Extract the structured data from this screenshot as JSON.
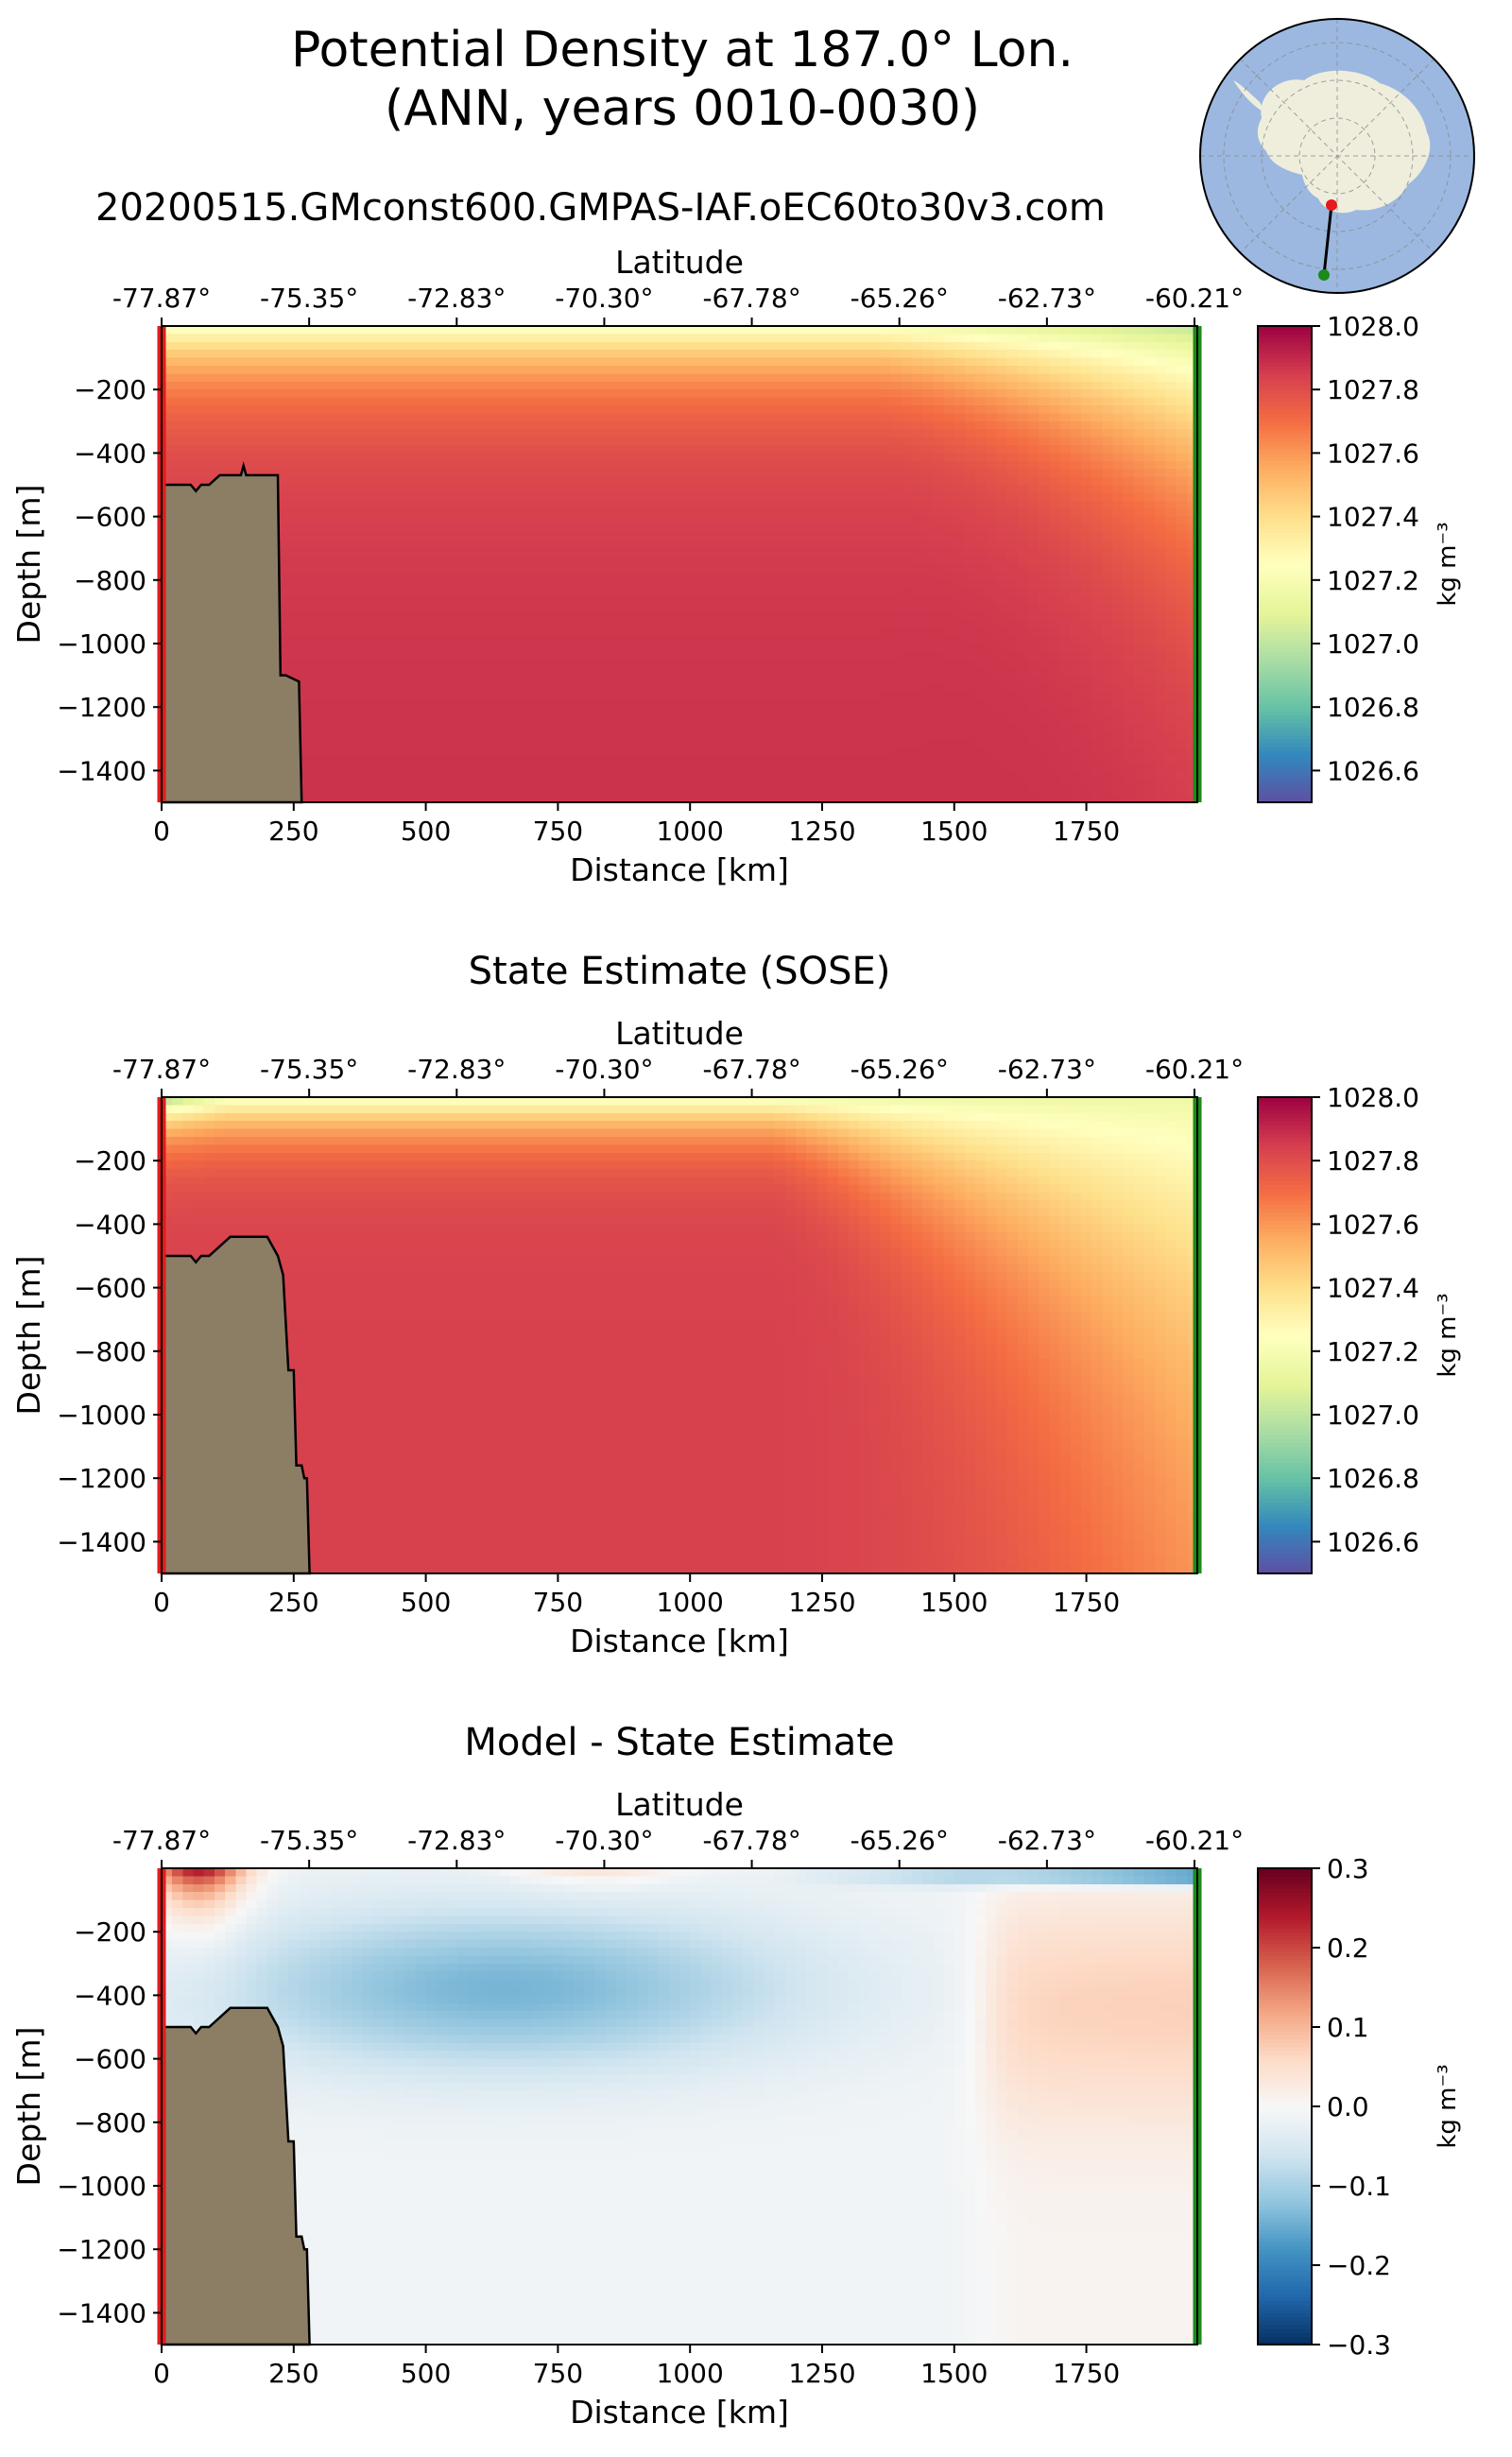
{
  "figure": {
    "title_line1": "Potential Density at 187.0° Lon.",
    "title_line2": "(ANN, years 0010-0030)",
    "run_title": "20200515.GMconst600.GMPAS-IAF.oEC60to30v3.com",
    "inset_map": "south-polar-stereographic-locator-map",
    "transect_start_marker_color": "#e41a1c",
    "transect_end_marker_color": "#1a8a1a",
    "land_color": "#8c7e65",
    "ocean_color": "#9cb8e0",
    "antarctica_color": "#efeedd"
  },
  "chart_data": [
    {
      "type": "heatmap",
      "title": "",
      "xlabel": "Distance [km]",
      "ylabel": "Depth [m]",
      "x2label": "Latitude",
      "xlim": [
        0,
        1960
      ],
      "ylim": [
        -1500,
        0
      ],
      "xticks": [
        0,
        250,
        500,
        750,
        1000,
        1250,
        1500,
        1750
      ],
      "yticks": [
        -200,
        -400,
        -600,
        -800,
        -1000,
        -1200,
        -1400
      ],
      "x2tick_labels": [
        "-77.87°",
        "-75.35°",
        "-72.83°",
        "-70.30°",
        "-67.78°",
        "-65.26°",
        "-62.73°",
        "-60.21°"
      ],
      "colormap": "Spectral_r",
      "vmin": 1026.5,
      "vmax": 1028.0,
      "colorbar_ticks": [
        "1026.6",
        "1026.8",
        "1027.0",
        "1027.2",
        "1027.4",
        "1027.6",
        "1027.8",
        "1028.0"
      ],
      "colorbar_label": "kg m⁻³",
      "field": {
        "surface": 1027.25,
        "deep": 1027.82,
        "east_surface": 1026.95,
        "east_deep": 1027.8
      },
      "bathymetry": {
        "distance_km": [
          0,
          20,
          40,
          55,
          65,
          75,
          90,
          110,
          150,
          155,
          160,
          200,
          220,
          225,
          235,
          260,
          265
        ],
        "depth_m": [
          -500,
          -500,
          -500,
          -500,
          -520,
          -500,
          -500,
          -470,
          -470,
          -440,
          -470,
          -470,
          -470,
          -1100,
          -1100,
          -1120,
          -1500
        ]
      }
    },
    {
      "type": "heatmap",
      "title": "State Estimate (SOSE)",
      "xlabel": "Distance [km]",
      "ylabel": "Depth [m]",
      "x2label": "Latitude",
      "xlim": [
        0,
        1960
      ],
      "ylim": [
        -1500,
        0
      ],
      "xticks": [
        0,
        250,
        500,
        750,
        1000,
        1250,
        1500,
        1750
      ],
      "yticks": [
        -200,
        -400,
        -600,
        -800,
        -1000,
        -1200,
        -1400
      ],
      "x2tick_labels": [
        "-77.87°",
        "-75.35°",
        "-72.83°",
        "-70.30°",
        "-67.78°",
        "-65.26°",
        "-62.73°",
        "-60.21°"
      ],
      "colormap": "Spectral_r",
      "vmin": 1026.5,
      "vmax": 1028.0,
      "colorbar_ticks": [
        "1026.6",
        "1026.8",
        "1027.0",
        "1027.2",
        "1027.4",
        "1027.6",
        "1027.8",
        "1028.0"
      ],
      "colorbar_label": "kg m⁻³",
      "field": {
        "surface": 1027.15,
        "deep": 1027.84,
        "east_surface": 1027.1,
        "east_deep": 1027.68
      },
      "bathymetry": {
        "distance_km": [
          0,
          35,
          40,
          55,
          65,
          75,
          90,
          130,
          135,
          200,
          220,
          230,
          240,
          250,
          255,
          265,
          270,
          275,
          280
        ],
        "depth_m": [
          -500,
          -500,
          -500,
          -500,
          -520,
          -500,
          -500,
          -440,
          -440,
          -440,
          -500,
          -560,
          -860,
          -860,
          -1160,
          -1160,
          -1200,
          -1200,
          -1500
        ]
      }
    },
    {
      "type": "heatmap",
      "title": "Model - State Estimate",
      "xlabel": "Distance [km]",
      "ylabel": "Depth [m]",
      "x2label": "Latitude",
      "xlim": [
        0,
        1960
      ],
      "ylim": [
        -1500,
        0
      ],
      "xticks": [
        0,
        250,
        500,
        750,
        1000,
        1250,
        1500,
        1750
      ],
      "yticks": [
        -200,
        -400,
        -600,
        -800,
        -1000,
        -1200,
        -1400
      ],
      "x2tick_labels": [
        "-77.87°",
        "-75.35°",
        "-72.83°",
        "-70.30°",
        "-67.78°",
        "-65.26°",
        "-62.73°",
        "-60.21°"
      ],
      "colormap": "RdBu_r",
      "vmin": -0.3,
      "vmax": 0.3,
      "colorbar_ticks": [
        "−0.3",
        "−0.2",
        "−0.1",
        "0.0",
        "0.1",
        "0.2",
        "0.3"
      ],
      "colorbar_label": "kg m⁻³",
      "field": {
        "nearshore_surface": 0.28,
        "midshelf_subsurface": -0.13,
        "deep": -0.01,
        "east_subsurface": 0.07,
        "east_surface": -0.2
      },
      "bathymetry": {
        "distance_km": [
          0,
          35,
          40,
          55,
          65,
          75,
          90,
          130,
          135,
          200,
          220,
          230,
          240,
          250,
          255,
          265,
          270,
          275,
          280
        ],
        "depth_m": [
          -500,
          -500,
          -500,
          -500,
          -520,
          -500,
          -500,
          -440,
          -440,
          -440,
          -500,
          -560,
          -860,
          -860,
          -1160,
          -1160,
          -1200,
          -1200,
          -1500
        ]
      }
    }
  ]
}
